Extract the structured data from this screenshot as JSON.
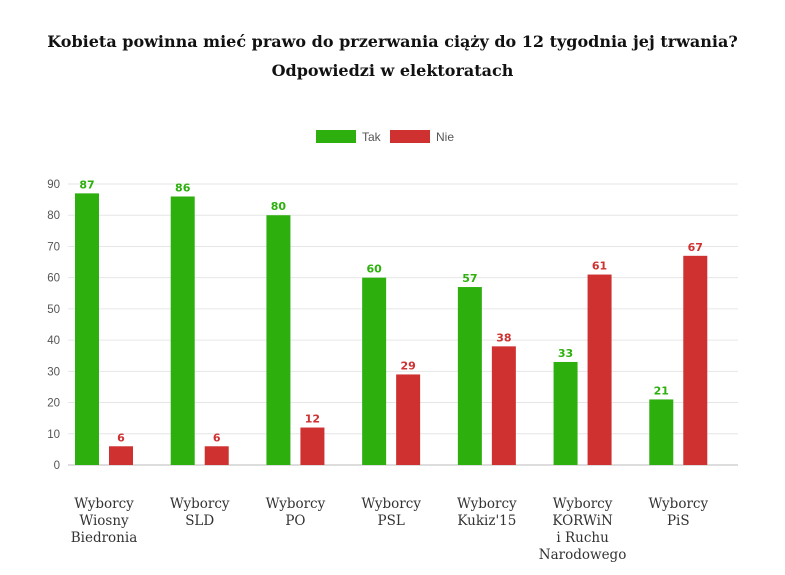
{
  "title": "Kobieta powinna mieć prawo do przerwania ciąży do 12 tygodnia jej trwania?",
  "subtitle": "Odpowiedzi w elektoratach",
  "colors": {
    "tak": "#2db00e",
    "nie": "#cf3131"
  },
  "chart_data": {
    "type": "bar",
    "title": "Kobieta powinna mieć prawo do przerwania ciąży do 12 tygodnia jej trwania?",
    "subtitle": "Odpowiedzi w elektoratach",
    "categories": [
      [
        "Wyborcy",
        "Wiosny",
        "Biedronia"
      ],
      [
        "Wyborcy",
        "SLD"
      ],
      [
        "Wyborcy",
        "PO"
      ],
      [
        "Wyborcy",
        "PSL"
      ],
      [
        "Wyborcy",
        "Kukiz'15"
      ],
      [
        "Wyborcy",
        "KORWiN",
        "i Ruchu",
        "Narodowego"
      ],
      [
        "Wyborcy",
        "PiS"
      ]
    ],
    "series": [
      {
        "name": "Tak",
        "color": "#2db00e",
        "values": [
          87,
          86,
          80,
          60,
          57,
          33,
          21
        ]
      },
      {
        "name": "Nie",
        "color": "#cf3131",
        "values": [
          6,
          6,
          12,
          29,
          38,
          61,
          67
        ]
      }
    ],
    "ylim": [
      0,
      90
    ],
    "yticks": [
      0,
      10,
      20,
      30,
      40,
      50,
      60,
      70,
      80,
      90
    ],
    "grid": true,
    "legend": "top-center",
    "xlabel": "",
    "ylabel": ""
  }
}
